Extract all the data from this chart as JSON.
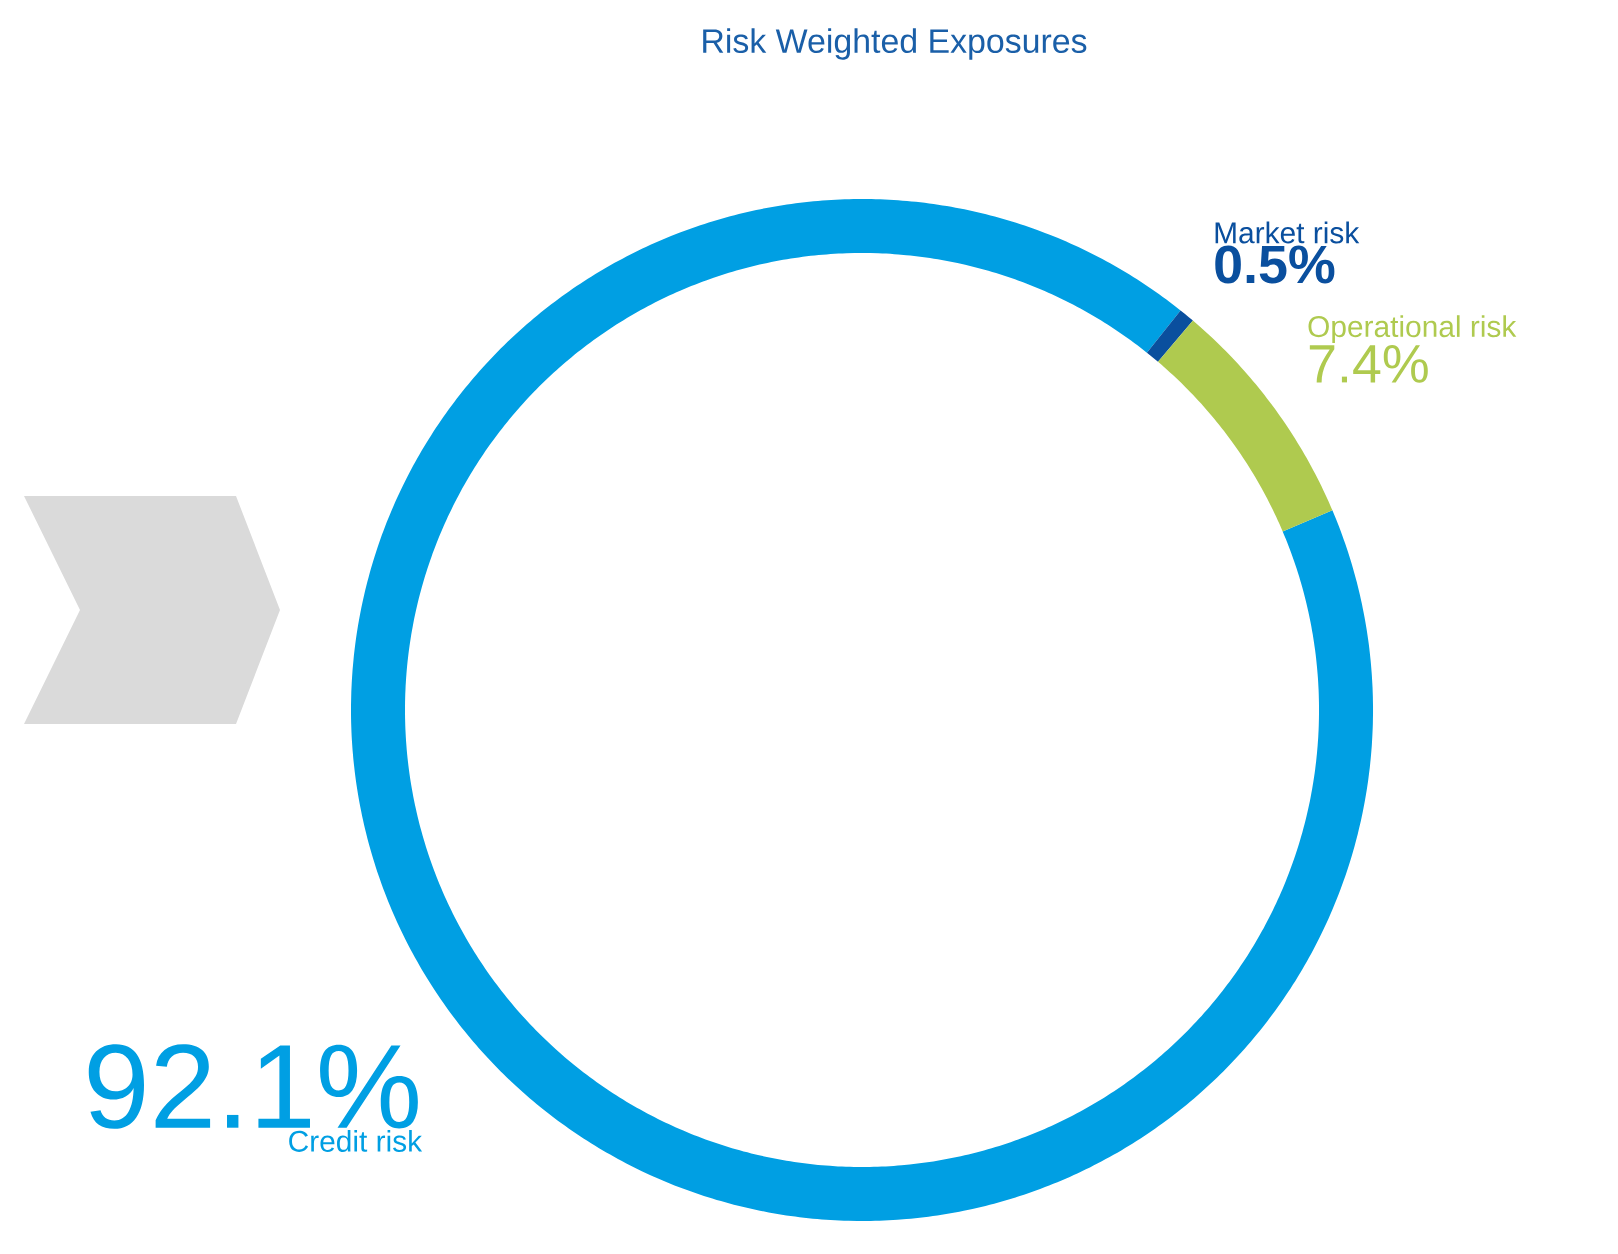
{
  "chart_data": {
    "type": "donut",
    "title": "Risk Weighted Exposures",
    "categories": [
      "Credit risk",
      "Market risk",
      "Operational risk"
    ],
    "values": [
      92.1,
      0.5,
      7.4
    ],
    "value_labels": [
      "92.1%",
      "0.5%",
      "7.4%"
    ],
    "colors": [
      "#009fe3",
      "#0a4f9e",
      "#afca4f"
    ],
    "legend": false
  }
}
